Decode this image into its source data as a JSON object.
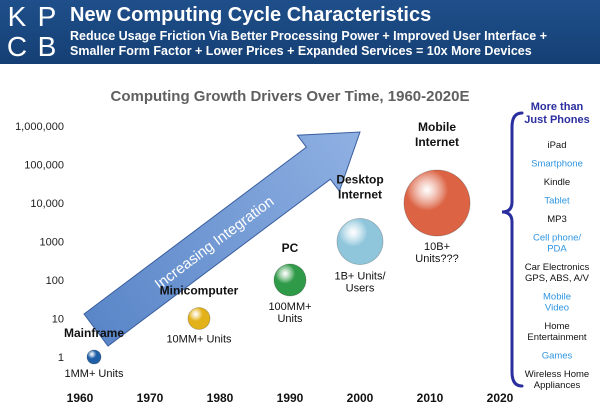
{
  "header": {
    "logo_letters": [
      "K",
      "P",
      "C",
      "B"
    ],
    "title": "New Computing Cycle Characteristics",
    "subtitle": "Reduce Usage Friction Via Better Processing Power + Improved User Interface + Smaller Form Factor + Lower Prices + Expanded Services = 10x More Devices"
  },
  "colors": {
    "header_bg": "#1a4a85",
    "side_accent": "#2b2e9e",
    "highlight_text": "#2f95e0"
  },
  "chart_data": {
    "type": "scatter",
    "title": "Computing Growth Drivers Over Time, 1960-2020E",
    "xlabel": "",
    "ylabel": "",
    "x_ticks": [
      "1960",
      "1970",
      "1980",
      "1990",
      "2000",
      "2010",
      "2020"
    ],
    "xlim": [
      1960,
      2020
    ],
    "y_ticks": [
      "1",
      "10",
      "100",
      "1000",
      "10,000",
      "100,000",
      "1,000,000"
    ],
    "ylim": [
      1,
      1000000
    ],
    "y_scale": "log",
    "grid": false,
    "series": [
      {
        "name": "Mainframe",
        "x": 1962,
        "y": 1,
        "caption": "1MM+ Units",
        "color": "#1f5fa8"
      },
      {
        "name": "Minicomputer",
        "x": 1977,
        "y": 10,
        "caption": "10MM+ Units",
        "color": "#e3b21a"
      },
      {
        "name": "PC",
        "x": 1990,
        "y": 100,
        "caption": "100MM+ Units",
        "color": "#2f9a47"
      },
      {
        "name": "Desktop Internet",
        "x": 2000,
        "y": 1000,
        "caption": "1B+ Units/ Users",
        "color": "#8fc6dc"
      },
      {
        "name": "Mobile Internet",
        "x": 2011,
        "y": 10000,
        "caption": "10B+ Units???",
        "color": "#dc6445"
      }
    ],
    "annotations": [
      {
        "text": "Increasing Integration"
      }
    ],
    "side_panel": {
      "heading": "More than Just Phones",
      "items": [
        {
          "text": "iPad",
          "highlight": false
        },
        {
          "text": "Smartphone",
          "highlight": true
        },
        {
          "text": "Kindle",
          "highlight": false
        },
        {
          "text": "Tablet",
          "highlight": true
        },
        {
          "text": "MP3",
          "highlight": false
        },
        {
          "text": "Cell phone/ PDA",
          "highlight": true
        },
        {
          "text": "Car Electronics GPS, ABS, A/V",
          "highlight": false
        },
        {
          "text": "Mobile Video",
          "highlight": true
        },
        {
          "text": "Home Entertainment",
          "highlight": false
        },
        {
          "text": "Games",
          "highlight": true
        },
        {
          "text": "Wireless Home Appliances",
          "highlight": false
        }
      ]
    }
  }
}
